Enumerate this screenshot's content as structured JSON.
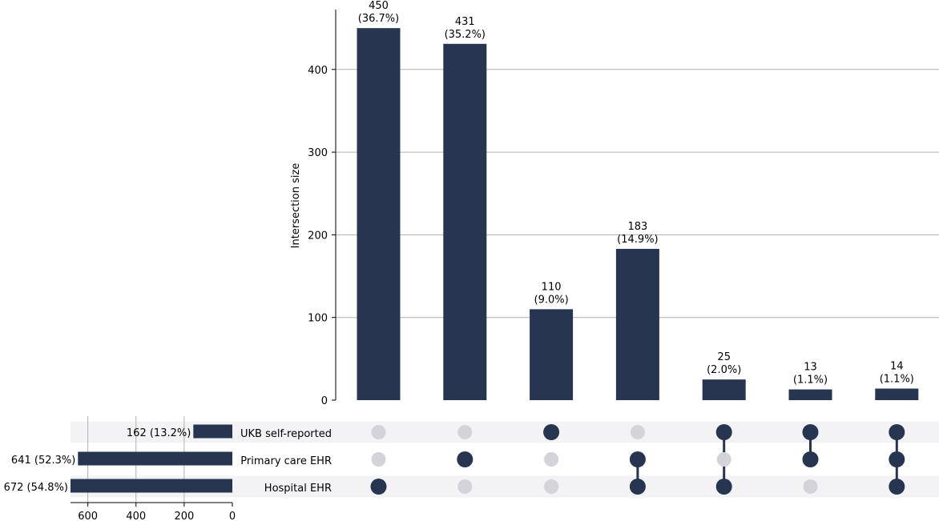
{
  "chart_data": {
    "type": "bar",
    "subtype": "upset",
    "ylabel": "Intersection size",
    "ylim": [
      0,
      475
    ],
    "y_ticks": [
      0,
      100,
      200,
      300,
      400
    ],
    "grid": true,
    "bar_color": "#273550",
    "inactive_dot_color": "#d3d3d9",
    "band_color": "#f3f3f5",
    "sets": [
      "UKB self-reported",
      "Primary care EHR",
      "Hospital EHR"
    ],
    "set_sizes": [
      162,
      641,
      672
    ],
    "set_size_labels": [
      "162 (13.2%)",
      "641 (52.3%)",
      "672 (54.8%)"
    ],
    "set_size_ticks": [
      600,
      400,
      200,
      0
    ],
    "set_size_xlim": [
      0,
      672
    ],
    "intersections": [
      {
        "members": [
          false,
          false,
          true
        ],
        "value": 450,
        "label_count": "450",
        "label_pct": "(36.7%)"
      },
      {
        "members": [
          false,
          true,
          false
        ],
        "value": 431,
        "label_count": "431",
        "label_pct": "(35.2%)"
      },
      {
        "members": [
          true,
          false,
          false
        ],
        "value": 110,
        "label_count": "110",
        "label_pct": "(9.0%)"
      },
      {
        "members": [
          false,
          true,
          true
        ],
        "value": 183,
        "label_count": "183",
        "label_pct": "(14.9%)"
      },
      {
        "members": [
          true,
          false,
          true
        ],
        "value": 25,
        "label_count": "25",
        "label_pct": "(2.0%)"
      },
      {
        "members": [
          true,
          true,
          false
        ],
        "value": 13,
        "label_count": "13",
        "label_pct": "(1.1%)"
      },
      {
        "members": [
          true,
          true,
          true
        ],
        "value": 14,
        "label_count": "14",
        "label_pct": "(1.1%)"
      }
    ]
  }
}
